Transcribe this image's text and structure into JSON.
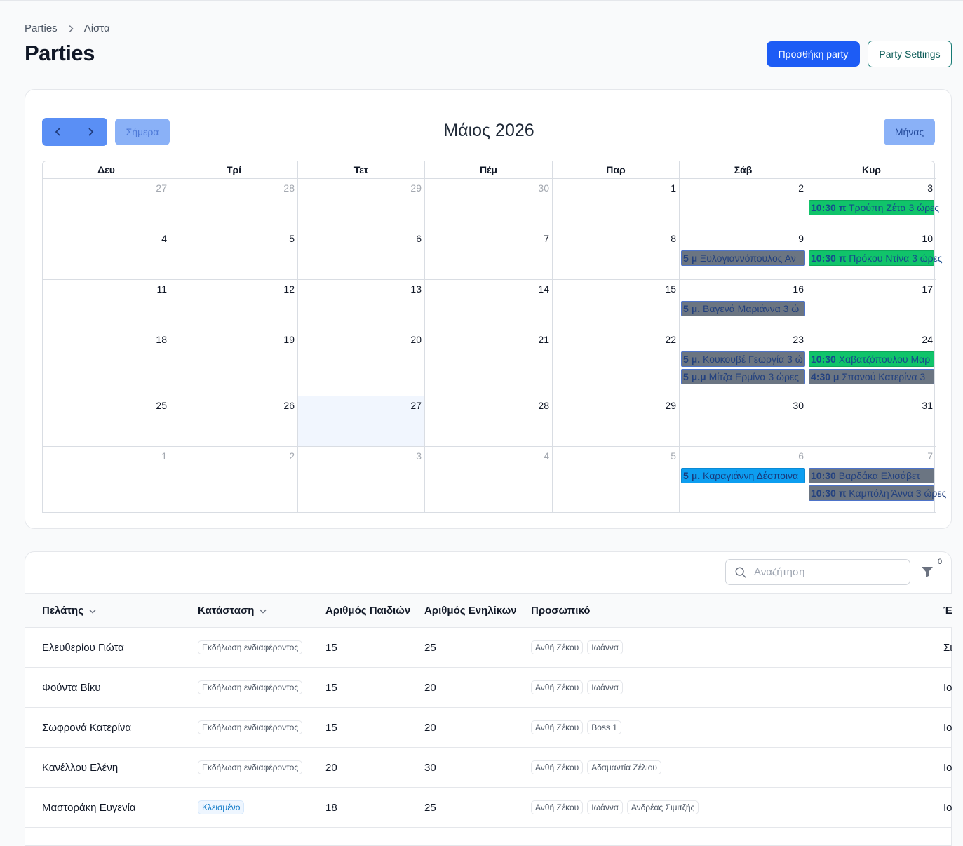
{
  "breadcrumb": {
    "parent": "Parties",
    "current": "Λίστα"
  },
  "page": {
    "title": "Parties"
  },
  "header_actions": {
    "add_party": "Προσθήκη party",
    "settings": "Party Settings"
  },
  "calendar": {
    "today_label": "Σήμερα",
    "month_label": "Μάιος 2026",
    "view_label": "Μήνας",
    "weekdays": [
      "Δευ",
      "Τρί",
      "Τετ",
      "Πέμ",
      "Παρ",
      "Σάβ",
      "Κυρ"
    ],
    "weeks": [
      [
        {
          "d": "27",
          "other": true
        },
        {
          "d": "28",
          "other": true
        },
        {
          "d": "29",
          "other": true
        },
        {
          "d": "30",
          "other": true
        },
        {
          "d": "1"
        },
        {
          "d": "2"
        },
        {
          "d": "3",
          "events": [
            {
              "time": "10:30 π",
              "text": "Τρούπη Ζέτα 3 ώρες",
              "color": "green"
            }
          ]
        }
      ],
      [
        {
          "d": "4"
        },
        {
          "d": "5"
        },
        {
          "d": "6"
        },
        {
          "d": "7"
        },
        {
          "d": "8"
        },
        {
          "d": "9",
          "events": [
            {
              "time": "5 μ",
              "text": "Ξυλογιαννόπουλος Αν",
              "color": "grey"
            }
          ]
        },
        {
          "d": "10",
          "events": [
            {
              "time": "10:30 π",
              "text": "Πρόκου Ντίνα 3 ώρες",
              "color": "green"
            }
          ]
        }
      ],
      [
        {
          "d": "11"
        },
        {
          "d": "12"
        },
        {
          "d": "13"
        },
        {
          "d": "14"
        },
        {
          "d": "15"
        },
        {
          "d": "16",
          "events": [
            {
              "time": "5 μ.",
              "text": "Βαγενά Μαριάννα 3 ώ",
              "color": "grey"
            }
          ]
        },
        {
          "d": "17"
        }
      ],
      [
        {
          "d": "18"
        },
        {
          "d": "19"
        },
        {
          "d": "20"
        },
        {
          "d": "21"
        },
        {
          "d": "22"
        },
        {
          "d": "23",
          "events": [
            {
              "time": "5 μ.",
              "text": "Κουκουβέ Γεωργία 3 ώ",
              "color": "grey"
            },
            {
              "time": "5 μ.μ",
              "text": "Μίτζα Ερμίνα 3 ώρες",
              "color": "grey"
            }
          ]
        },
        {
          "d": "24",
          "events": [
            {
              "time": "10:30",
              "text": "Χαβατζόπουλου Μαρ",
              "color": "green"
            },
            {
              "time": "4:30 μ",
              "text": "Σπανού Κατερίνα 3",
              "color": "grey"
            }
          ]
        }
      ],
      [
        {
          "d": "25"
        },
        {
          "d": "26"
        },
        {
          "d": "27",
          "today": true
        },
        {
          "d": "28"
        },
        {
          "d": "29"
        },
        {
          "d": "30"
        },
        {
          "d": "31"
        }
      ],
      [
        {
          "d": "1",
          "other": true
        },
        {
          "d": "2",
          "other": true
        },
        {
          "d": "3",
          "other": true
        },
        {
          "d": "4",
          "other": true
        },
        {
          "d": "5",
          "other": true
        },
        {
          "d": "6",
          "other": true,
          "events": [
            {
              "time": "5 μ.",
              "text": "Καραγιάννη Δέσποινα",
              "color": "blue"
            }
          ]
        },
        {
          "d": "7",
          "other": true,
          "events": [
            {
              "time": "10:30",
              "text": "Βαρδάκα Ελισάβετ",
              "color": "grey"
            },
            {
              "time": "10:30 π",
              "text": "Καμπόλη Άννα 3 ώρες",
              "color": "grey"
            }
          ]
        }
      ]
    ]
  },
  "table": {
    "search_placeholder": "Αναζήτηση",
    "filter_count": "0",
    "columns": [
      "Πελάτης",
      "Κατάσταση",
      "Αριθμός Παιδιών",
      "Αριθμός Ενηλίκων",
      "Προσωπικό",
      "Έ"
    ],
    "rows": [
      {
        "client": "Ελευθερίου Γιώτα",
        "status": "Εκδήλωση ενδιαφέροντος",
        "closed": false,
        "kids": "15",
        "adults": "25",
        "staff": [
          "Ανθή Ζέκου",
          "Ιωάννα"
        ],
        "extra": "Σι"
      },
      {
        "client": "Φούντα Βίκυ",
        "status": "Εκδήλωση ενδιαφέροντος",
        "closed": false,
        "kids": "15",
        "adults": "20",
        "staff": [
          "Ανθή Ζέκου",
          "Ιωάννα"
        ],
        "extra": "Ιο"
      },
      {
        "client": "Σωφρονά Κατερίνα",
        "status": "Εκδήλωση ενδιαφέροντος",
        "closed": false,
        "kids": "15",
        "adults": "20",
        "staff": [
          "Ανθή Ζέκου",
          "Boss 1"
        ],
        "extra": "Ιο"
      },
      {
        "client": "Κανέλλου Ελένη",
        "status": "Εκδήλωση ενδιαφέροντος",
        "closed": false,
        "kids": "20",
        "adults": "30",
        "staff": [
          "Ανθή Ζέκου",
          "Αδαμαντία Ζέλιου"
        ],
        "extra": "Ιο"
      },
      {
        "client": "Μαστοράκη Ευγενία",
        "status": "Κλεισμένο",
        "closed": true,
        "kids": "18",
        "adults": "25",
        "staff": [
          "Ανθή Ζέκου",
          "Ιωάννα",
          "Ανδρέας Σιμιτζής"
        ],
        "extra": "Ιο"
      }
    ]
  },
  "colors": {
    "primary": "#1d5cf5",
    "event_green": "#10c46a",
    "event_grey": "#6b7582",
    "event_blue": "#0d9ef0"
  }
}
